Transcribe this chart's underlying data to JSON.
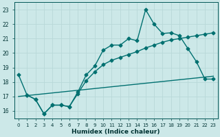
{
  "xlabel": "Humidex (Indice chaleur)",
  "bg_color": "#cce8e8",
  "grid_color": "#b8d8d8",
  "line_color": "#007070",
  "xlim": [
    -0.5,
    23.5
  ],
  "ylim": [
    15.5,
    23.5
  ],
  "yticks": [
    16,
    17,
    18,
    19,
    20,
    21,
    22,
    23
  ],
  "xticks": [
    0,
    1,
    2,
    3,
    4,
    5,
    6,
    7,
    8,
    9,
    10,
    11,
    12,
    13,
    14,
    15,
    16,
    17,
    18,
    19,
    20,
    21,
    22,
    23
  ],
  "curve1_x": [
    0,
    1,
    2,
    3,
    4,
    5,
    6,
    7,
    8,
    9,
    10,
    11,
    12,
    13,
    14,
    15,
    16,
    17,
    18,
    19,
    20,
    21,
    22,
    23
  ],
  "curve1_y": [
    18.5,
    17.1,
    16.8,
    15.8,
    16.4,
    16.4,
    16.3,
    17.3,
    18.5,
    19.1,
    20.2,
    20.55,
    20.55,
    21.0,
    20.85,
    23.0,
    22.0,
    21.35,
    21.4,
    21.2,
    20.3,
    19.4,
    18.2,
    18.2
  ],
  "curve2_x": [
    1,
    2,
    3,
    4,
    5,
    6,
    7,
    8,
    9,
    10,
    11,
    12,
    13,
    14,
    15,
    16,
    17,
    18,
    19,
    20,
    21,
    22,
    23
  ],
  "curve2_y": [
    17.1,
    16.8,
    15.8,
    16.4,
    16.4,
    16.3,
    17.2,
    18.1,
    18.7,
    19.2,
    19.5,
    19.7,
    19.9,
    20.1,
    20.35,
    20.55,
    20.75,
    20.9,
    21.0,
    21.1,
    21.2,
    21.3,
    21.4
  ],
  "line3_x": [
    0,
    23
  ],
  "line3_y": [
    17.0,
    18.4
  ],
  "marker": "D",
  "marker_size": 2.5,
  "linewidth": 1.0
}
